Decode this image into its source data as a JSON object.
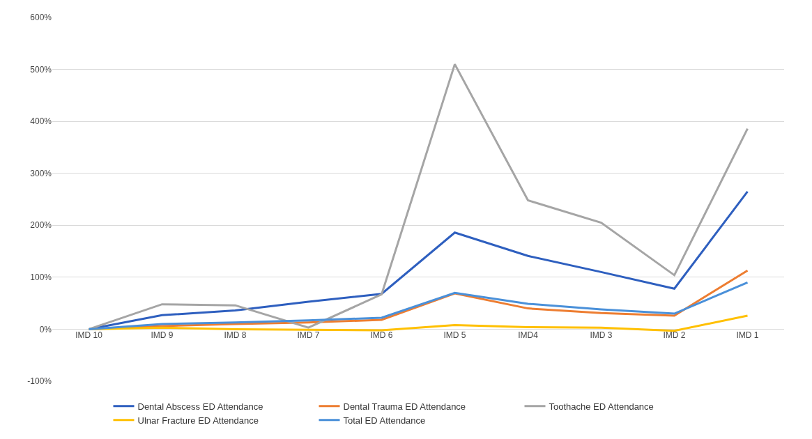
{
  "chart_data": {
    "type": "line",
    "categories": [
      "IMD 10",
      "IMD 9",
      "IMD 8",
      "IMD 7",
      "IMD 6",
      "IMD 5",
      "IMD4",
      "IMD 3",
      "IMD 2",
      "IMD 1"
    ],
    "series": [
      {
        "name": "Dental Abscess ED Attendance",
        "color": "#2e5fbf",
        "values": [
          0,
          27,
          36,
          53,
          68,
          186,
          141,
          110,
          78,
          265
        ]
      },
      {
        "name": "Dental Trauma ED Attendance",
        "color": "#ed7d31",
        "values": [
          0,
          6,
          10,
          13,
          18,
          69,
          40,
          31,
          26,
          113
        ]
      },
      {
        "name": "Toothache ED Attendance",
        "color": "#a5a5a5",
        "values": [
          0,
          48,
          46,
          3,
          67,
          510,
          248,
          205,
          104,
          386
        ]
      },
      {
        "name": "Ulnar Fracture ED Attendance",
        "color": "#ffc000",
        "values": [
          0,
          3,
          0,
          -1,
          -2,
          8,
          4,
          3,
          -3,
          26
        ]
      },
      {
        "name": "Total ED Attendance",
        "color": "#4a90d9",
        "values": [
          0,
          10,
          13,
          17,
          22,
          70,
          49,
          38,
          30,
          90
        ]
      }
    ],
    "ylim": [
      -100,
      600
    ],
    "yticks": [
      {
        "value": -100,
        "label": "-100%"
      },
      {
        "value": 0,
        "label": "0%"
      },
      {
        "value": 100,
        "label": "100%"
      },
      {
        "value": 200,
        "label": "200%"
      },
      {
        "value": 300,
        "label": "300%"
      },
      {
        "value": 400,
        "label": "400%"
      },
      {
        "value": 500,
        "label": "500%"
      },
      {
        "value": 600,
        "label": "600%"
      }
    ],
    "grid": "y",
    "legend": "bottom",
    "marker": "none",
    "line_style": "solid"
  }
}
